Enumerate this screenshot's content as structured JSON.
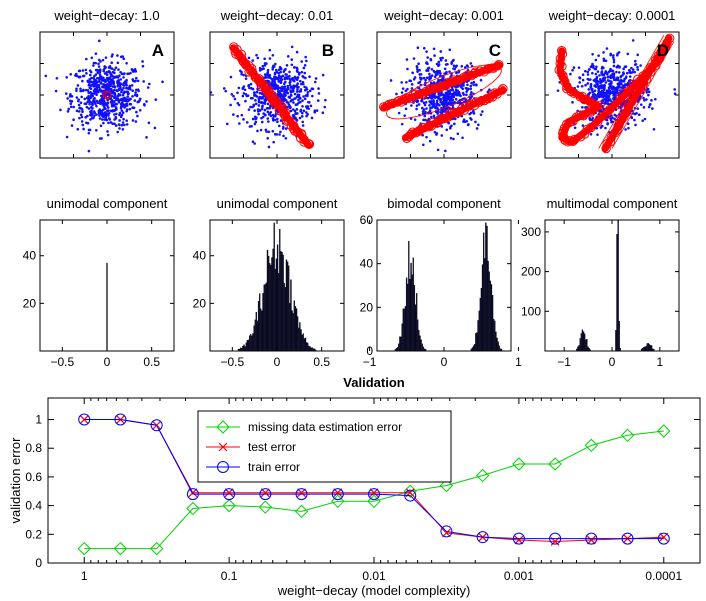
{
  "chart_data": [
    {
      "type": "scatter",
      "title": "weight−decay: 1.0",
      "panel_label": "A",
      "description_points": "isotropic gaussian cloud, blue dots; red component points collapsed at origin",
      "red_component": {
        "shape": "point",
        "center": [
          0,
          0
        ],
        "spread": 0.05
      },
      "xlim": [
        -4,
        4
      ],
      "ylim": [
        -4,
        4
      ]
    },
    {
      "type": "scatter",
      "title": "weight−decay: 0.01",
      "panel_label": "B",
      "red_component": {
        "shape": "line",
        "from": [
          -2.6,
          3.0
        ],
        "to": [
          1.9,
          -3.2
        ]
      },
      "xlim": [
        -4,
        4
      ],
      "ylim": [
        -4,
        4
      ]
    },
    {
      "type": "scatter",
      "title": "weight−decay: 0.001",
      "panel_label": "C",
      "red_component": {
        "shape": "two_lines",
        "lines": [
          {
            "from": [
              -3.6,
              -0.8
            ],
            "to": [
              3.3,
              1.9
            ]
          },
          {
            "from": [
              -2.3,
              -2.7
            ],
            "to": [
              3.5,
              0.3
            ]
          }
        ]
      },
      "xlim": [
        -4,
        4
      ],
      "ylim": [
        -4,
        4
      ]
    },
    {
      "type": "scatter",
      "title": "weight−decay: 0.0001",
      "panel_label": "D",
      "red_component": {
        "shape": "curve",
        "path": [
          [
            -3.0,
            2.8
          ],
          [
            -3.1,
            1.5
          ],
          [
            -2.6,
            0.4
          ],
          [
            -1.6,
            -0.3
          ],
          [
            -0.8,
            -0.7
          ],
          [
            -1.6,
            -1.2
          ],
          [
            -2.6,
            -1.7
          ],
          [
            -3.0,
            -2.7
          ],
          [
            -2.4,
            -3.0
          ],
          [
            -1.2,
            -2.0
          ],
          [
            0.2,
            -0.6
          ],
          [
            1.6,
            0.9
          ],
          [
            2.8,
            2.2
          ],
          [
            3.3,
            3.3
          ]
        ],
        "extra_line": {
          "from": [
            -0.4,
            -3.4
          ],
          "to": [
            3.4,
            3.6
          ]
        }
      },
      "xlim": [
        -4,
        4
      ],
      "ylim": [
        -4,
        4
      ]
    },
    {
      "type": "bar",
      "title": "unimodal component",
      "xlim": [
        -0.75,
        0.75
      ],
      "ylim": [
        0,
        55
      ],
      "xticks": [
        "−0.5",
        "0",
        "0.5"
      ],
      "xtick_values": [
        -0.5,
        0,
        0.5
      ],
      "yticks": [
        "20",
        "40"
      ],
      "ytick_values": [
        20,
        40
      ],
      "histogram": {
        "kind": "spike",
        "center": 0,
        "height": 37
      }
    },
    {
      "type": "bar",
      "title": "unimodal component",
      "xlim": [
        -0.75,
        0.75
      ],
      "ylim": [
        0,
        55
      ],
      "xticks": [
        "−0.5",
        "0",
        "0.5"
      ],
      "xtick_values": [
        -0.5,
        0,
        0.5
      ],
      "yticks": [
        "20",
        "40"
      ],
      "ytick_values": [
        20,
        40
      ],
      "histogram": {
        "kind": "modes",
        "modes": [
          {
            "center": 0.0,
            "sd": 0.15,
            "peak": 44
          }
        ]
      }
    },
    {
      "type": "bar",
      "title": "bimodal component",
      "xlim": [
        -0.9,
        0.9
      ],
      "ylim": [
        0,
        60
      ],
      "xticks": [
        "−1",
        "0",
        "1"
      ],
      "xtick_values": [
        -1,
        0,
        1
      ],
      "yticks": [
        "0",
        "20",
        "40",
        "60"
      ],
      "ytick_values": [
        0,
        20,
        40,
        60
      ],
      "histogram": {
        "kind": "modes",
        "modes": [
          {
            "center": -0.45,
            "sd": 0.07,
            "peak": 43
          },
          {
            "center": 0.57,
            "sd": 0.07,
            "peak": 53
          }
        ]
      }
    },
    {
      "type": "bar",
      "title": "multimodal component",
      "xlim": [
        -1.4,
        1.4
      ],
      "ylim": [
        0,
        330
      ],
      "xticks": [
        "−1",
        "0",
        "1"
      ],
      "xtick_values": [
        -1,
        0,
        1
      ],
      "yticks": [
        "100",
        "200",
        "300"
      ],
      "ytick_values": [
        100,
        200,
        300
      ],
      "histogram": {
        "kind": "modes",
        "modes": [
          {
            "center": -0.6,
            "sd": 0.06,
            "peak": 55
          },
          {
            "center": 0.12,
            "sd": 0.02,
            "peak": 318
          },
          {
            "center": 0.75,
            "sd": 0.08,
            "peak": 18
          }
        ]
      }
    },
    {
      "type": "line",
      "title": "Validation",
      "xlabel": "weight−decay (model complexity)",
      "ylabel": "validation error",
      "x_positions": [
        0,
        0.25,
        0.5,
        0.75,
        1,
        1.25,
        1.5,
        1.75,
        2,
        2.25,
        2.5,
        2.75,
        3,
        3.25,
        3.5,
        3.75,
        4
      ],
      "xticks": [
        "1",
        "0.1",
        "0.01",
        "0.001",
        "0.0001"
      ],
      "xtick_positions": [
        0,
        1,
        2,
        3,
        4
      ],
      "ylim": [
        0,
        1.15
      ],
      "yticks": [
        "0",
        "0.2",
        "0.4",
        "0.6",
        "0.8",
        "1"
      ],
      "ytick_values": [
        0,
        0.2,
        0.4,
        0.6,
        0.8,
        1
      ],
      "legend_position": "top-center",
      "series": [
        {
          "name": "missing data estimation error",
          "color": "#00d400",
          "marker": "diamond",
          "values": [
            0.1,
            0.1,
            0.1,
            0.38,
            0.4,
            0.39,
            0.36,
            0.43,
            0.43,
            0.5,
            0.54,
            0.61,
            0.69,
            0.69,
            0.82,
            0.89,
            0.92
          ]
        },
        {
          "name": "test error",
          "color": "#ff0000",
          "marker": "x",
          "values": [
            1.0,
            1.0,
            0.96,
            0.49,
            0.49,
            0.49,
            0.49,
            0.49,
            0.49,
            0.49,
            0.21,
            0.18,
            0.16,
            0.15,
            0.16,
            0.17,
            0.18
          ]
        },
        {
          "name": "train error",
          "color": "#0000ff",
          "marker": "circle",
          "values": [
            1.0,
            1.0,
            0.96,
            0.48,
            0.48,
            0.48,
            0.48,
            0.48,
            0.48,
            0.47,
            0.22,
            0.18,
            0.17,
            0.17,
            0.17,
            0.17,
            0.17
          ]
        }
      ]
    }
  ]
}
